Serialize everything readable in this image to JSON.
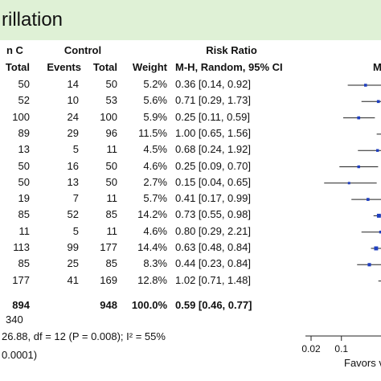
{
  "title": "rillation",
  "groups": {
    "treatment": "n C",
    "control": "Control",
    "risk_ratio": "Risk Ratio",
    "plot": "M"
  },
  "columns": [
    "Total",
    "Events",
    "Total",
    "Weight",
    "M-H, Random, 95% CI"
  ],
  "rows": [
    {
      "t_total": "50",
      "c_events": "14",
      "c_total": "50",
      "weight": "5.2%",
      "rr": "0.36 [0.14, 0.92]"
    },
    {
      "t_total": "52",
      "c_events": "10",
      "c_total": "53",
      "weight": "5.6%",
      "rr": "0.71 [0.29, 1.73]"
    },
    {
      "t_total": "100",
      "c_events": "24",
      "c_total": "100",
      "weight": "5.9%",
      "rr": "0.25 [0.11, 0.59]"
    },
    {
      "t_total": "89",
      "c_events": "29",
      "c_total": "96",
      "weight": "11.5%",
      "rr": "1.00 [0.65, 1.56]"
    },
    {
      "t_total": "13",
      "c_events": "5",
      "c_total": "11",
      "weight": "4.5%",
      "rr": "0.68 [0.24, 1.92]"
    },
    {
      "t_total": "50",
      "c_events": "16",
      "c_total": "50",
      "weight": "4.6%",
      "rr": "0.25 [0.09, 0.70]"
    },
    {
      "t_total": "50",
      "c_events": "13",
      "c_total": "50",
      "weight": "2.7%",
      "rr": "0.15 [0.04, 0.65]"
    },
    {
      "t_total": "19",
      "c_events": "7",
      "c_total": "11",
      "weight": "5.7%",
      "rr": "0.41 [0.17, 0.99]"
    },
    {
      "t_total": "85",
      "c_events": "52",
      "c_total": "85",
      "weight": "14.2%",
      "rr": "0.73 [0.55, 0.98]"
    },
    {
      "t_total": "11",
      "c_events": "5",
      "c_total": "11",
      "weight": "4.6%",
      "rr": "0.80 [0.29, 2.21]"
    },
    {
      "t_total": "113",
      "c_events": "99",
      "c_total": "177",
      "weight": "14.4%",
      "rr": "0.63 [0.48, 0.84]"
    },
    {
      "t_total": "85",
      "c_events": "25",
      "c_total": "85",
      "weight": "8.3%",
      "rr": "0.44 [0.23, 0.84]"
    },
    {
      "t_total": "177",
      "c_events": "41",
      "c_total": "169",
      "weight": "12.8%",
      "rr": "1.02 [0.71, 1.48]"
    }
  ],
  "total_row": {
    "t_total": "894",
    "c_total": "948",
    "weight": "100.0%",
    "rr": "0.59 [0.46, 0.77]"
  },
  "events_total": "340",
  "heterogeneity": "26.88, df = 12 (P = 0.008); I² = 55%",
  "overall_effect": "0.0001)",
  "favors": "Favors v",
  "chart_data": {
    "type": "forest",
    "scale": "log",
    "x_ticks": [
      0.02,
      0.1
    ],
    "x_tick_labels": [
      "0.02",
      "0.1"
    ],
    "studies": [
      {
        "rr": 0.36,
        "lo": 0.14,
        "hi": 0.92,
        "weight": 5.2
      },
      {
        "rr": 0.71,
        "lo": 0.29,
        "hi": 1.73,
        "weight": 5.6
      },
      {
        "rr": 0.25,
        "lo": 0.11,
        "hi": 0.59,
        "weight": 5.9
      },
      {
        "rr": 1.0,
        "lo": 0.65,
        "hi": 1.56,
        "weight": 11.5
      },
      {
        "rr": 0.68,
        "lo": 0.24,
        "hi": 1.92,
        "weight": 4.5
      },
      {
        "rr": 0.25,
        "lo": 0.09,
        "hi": 0.7,
        "weight": 4.6
      },
      {
        "rr": 0.15,
        "lo": 0.04,
        "hi": 0.65,
        "weight": 2.7
      },
      {
        "rr": 0.41,
        "lo": 0.17,
        "hi": 0.99,
        "weight": 5.7
      },
      {
        "rr": 0.73,
        "lo": 0.55,
        "hi": 0.98,
        "weight": 14.2
      },
      {
        "rr": 0.8,
        "lo": 0.29,
        "hi": 2.21,
        "weight": 4.6
      },
      {
        "rr": 0.63,
        "lo": 0.48,
        "hi": 0.84,
        "weight": 14.4
      },
      {
        "rr": 0.44,
        "lo": 0.23,
        "hi": 0.84,
        "weight": 8.3
      },
      {
        "rr": 1.02,
        "lo": 0.71,
        "hi": 1.48,
        "weight": 12.8
      }
    ],
    "pooled": {
      "rr": 0.59,
      "lo": 0.46,
      "hi": 0.77
    }
  }
}
